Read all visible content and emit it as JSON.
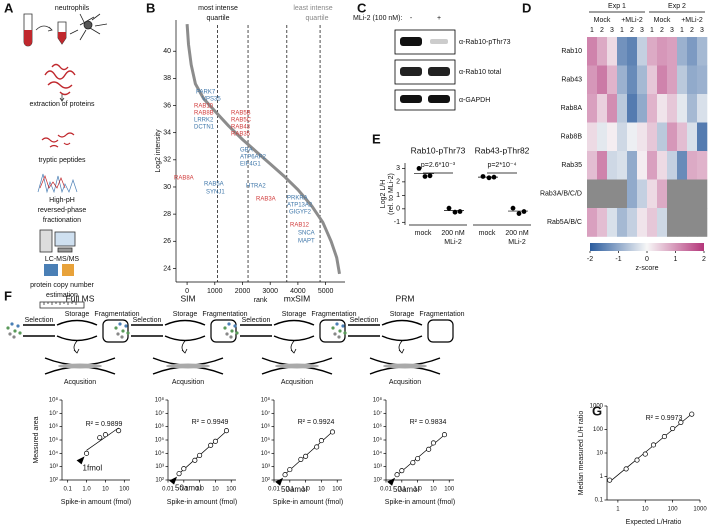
{
  "panels": [
    "A",
    "B",
    "C",
    "D",
    "E",
    "F",
    "G"
  ],
  "workflow": {
    "source": "neutrophils",
    "steps": [
      "extraction of proteins",
      "tryptic peptides",
      "High-pH",
      "reversed-phase",
      "fractionation",
      "LC-MS/MS",
      "protein copy number",
      "estimation"
    ]
  },
  "blot": {
    "treatment": "MLi-2 (100 nM):",
    "lanes": [
      "-",
      "+"
    ],
    "antibodies": [
      "α-Rab10-pThr73",
      "α-Rab10 total",
      "α-GAPDH"
    ]
  },
  "schematic": {
    "selection": "Selection",
    "storage": "Storage",
    "fragmentation": "Fragmentation",
    "acquisition": "Acqusition"
  },
  "chart_data": [
    {
      "type": "line",
      "xlabel": "rank",
      "ylabel": "Log2 intensity",
      "header_left": [
        "most intense",
        "quartile"
      ],
      "header_right": [
        "least intense",
        "quartile"
      ],
      "x": [
        0,
        50,
        150,
        300,
        600,
        1000,
        1500,
        2000,
        2500,
        3000,
        3500,
        4000,
        4500,
        4900,
        5200,
        5400,
        5500
      ],
      "values": [
        42,
        40.5,
        39,
        37.6,
        36.5,
        35.6,
        34.5,
        33.5,
        32.6,
        31.7,
        30.8,
        29.8,
        28.6,
        27.4,
        26,
        24.8,
        23.6
      ],
      "color": "#8c8c8c",
      "xlim": [
        -400,
        5700
      ],
      "ylim": [
        23,
        42.3
      ],
      "xticks": [
        0,
        1000,
        2000,
        3000,
        4000,
        5000
      ],
      "yticks": [
        24,
        26,
        28,
        30,
        32,
        34,
        36,
        38,
        40
      ],
      "quartile_lines": [
        1100,
        2200,
        3600,
        4800
      ],
      "annotations": [
        {
          "text": "PARK7",
          "color": "#3f77aa"
        },
        {
          "text": "VPS35",
          "color": "#3f77aa"
        },
        {
          "text": "RAB10",
          "color": "#d13a3a"
        },
        {
          "text": "RAB8B",
          "color": "#d13a3a"
        },
        {
          "text": "LRRK2",
          "color": "#3f77aa"
        },
        {
          "text": "DCTN1",
          "color": "#3f77aa"
        },
        {
          "text": "RAB5B",
          "color": "#d13a3a"
        },
        {
          "text": "RAB5C",
          "color": "#d13a3a"
        },
        {
          "text": "RAB43",
          "color": "#d13a3a"
        },
        {
          "text": "RAB35",
          "color": "#d13a3a"
        },
        {
          "text": "GBA",
          "color": "#3f77aa"
        },
        {
          "text": "ATP6AP2",
          "color": "#3f77aa"
        },
        {
          "text": "EIF4G1",
          "color": "#3f77aa"
        },
        {
          "text": "RAB8A",
          "color": "#d13a3a"
        },
        {
          "text": "RAB5A",
          "color": "#3f77aa"
        },
        {
          "text": "SYNJ1",
          "color": "#3f77aa"
        },
        {
          "text": "HTRA2",
          "color": "#3f77aa"
        },
        {
          "text": "RAB3A",
          "color": "#d13a3a"
        },
        {
          "text": "PRKRA",
          "color": "#3f77aa"
        },
        {
          "text": "ATP13A2",
          "color": "#3f77aa"
        },
        {
          "text": "GIGYF2",
          "color": "#3f77aa"
        },
        {
          "text": "RAB12",
          "color": "#d13a3a"
        },
        {
          "text": "SNCA",
          "color": "#3f77aa"
        },
        {
          "text": "MAPT",
          "color": "#3f77aa"
        }
      ]
    },
    {
      "type": "heatmap",
      "groups": [
        "Exp 1",
        "Exp 2"
      ],
      "conditions": [
        "Mock",
        "+MLi-2",
        "Mock",
        "+MLi-2"
      ],
      "columns": [
        1,
        2,
        3,
        1,
        2,
        3,
        1,
        2,
        3,
        1,
        2,
        3
      ],
      "rows": [
        "Rab10",
        "Rab43",
        "Rab8A",
        "Rab8B",
        "Rab35",
        "Rab3A/B/C/D",
        "Rab5A/B/C"
      ],
      "values": [
        [
          1.2,
          0.8,
          0.3,
          -1.3,
          -1.5,
          -0.5,
          0.8,
          1.0,
          0.9,
          -0.9,
          -1.2,
          -0.8
        ],
        [
          1.0,
          1.3,
          0.7,
          -0.9,
          -1.4,
          -0.8,
          0.5,
          1.2,
          0.9,
          -0.6,
          -1.0,
          -0.9
        ],
        [
          0.9,
          0.4,
          1.1,
          -0.6,
          -1.6,
          -1.0,
          0.7,
          0.2,
          0.5,
          -0.2,
          -0.8,
          -0.3
        ],
        [
          0.3,
          -0.2,
          0.1,
          -0.4,
          -0.1,
          0.2,
          0.5,
          -0.6,
          1.0,
          0.6,
          -0.3,
          -1.6
        ],
        [
          0.6,
          1.2,
          -0.4,
          -0.3,
          -1.0,
          0.1,
          0.9,
          0.3,
          -0.5,
          -1.4,
          0.8,
          0.7
        ],
        [
          null,
          null,
          null,
          null,
          -1.0,
          -0.5,
          0.3,
          0.8,
          null,
          null,
          null,
          null
        ],
        [
          0.9,
          0.6,
          -0.3,
          -0.8,
          -0.5,
          0.2,
          0.5,
          -0.4,
          null,
          null,
          null,
          null
        ]
      ],
      "colors": [
        "#2b5c9e",
        "#f7f7f7",
        "#b4367a"
      ],
      "missing_color": "#8a8a8a",
      "colorbar": {
        "label": "z-score",
        "lim": [
          -2,
          2
        ],
        "ticks": [
          -2,
          -1,
          0,
          1,
          2
        ]
      }
    },
    {
      "type": "dot",
      "ylabel": [
        "Log2 L/H",
        "(rel. to MLi-2)"
      ],
      "ylim": [
        -1.2,
        3.4
      ],
      "yticks": [
        -1,
        0,
        1,
        2,
        3
      ],
      "color": "#000000",
      "categories": [
        [
          "mock"
        ],
        [
          "200 nM",
          "MLi-2"
        ]
      ],
      "subplots": [
        {
          "title": "Rab10-pThr73",
          "pvalue": "p=2.6*10⁻³",
          "values": [
            [
              3.0,
              2.4,
              2.45
            ],
            [
              0.05,
              -0.25,
              -0.2
            ]
          ]
        },
        {
          "title": "Rab43-pThr82",
          "pvalue": "p=2*10⁻⁴",
          "values": [
            [
              2.4,
              2.3,
              2.35
            ],
            [
              0.05,
              -0.35,
              -0.2
            ]
          ]
        }
      ]
    },
    {
      "type": "scatter",
      "title": "Full MS",
      "r2": "R² = 0.9899",
      "lod": "1fmol",
      "x": [
        1,
        5,
        10,
        50
      ],
      "values": [
        10000,
        150000,
        250000,
        500000
      ],
      "xlim": [
        0.05,
        200
      ],
      "ylim": [
        100,
        100000000
      ],
      "log": true,
      "xticks": [
        0.1,
        {
          "value": 1,
          "label": "1.0"
        },
        10,
        100
      ],
      "yticks": [
        {
          "value": 100,
          "label": "10²"
        },
        {
          "value": 1000,
          "label": "10³"
        },
        {
          "value": 10000,
          "label": "10⁴"
        },
        {
          "value": 100000,
          "label": "10⁵"
        },
        {
          "value": 1000000,
          "label": "10⁶"
        },
        {
          "value": 10000000,
          "label": "10⁷"
        },
        {
          "value": 100000000,
          "label": "10⁸"
        }
      ],
      "xlabel": "Spike-in amount (fmol)",
      "ylabel": "Measured area"
    },
    {
      "type": "scatter",
      "title": "SIM",
      "r2": "R² = 0.9949",
      "lod": "50amol",
      "x": [
        0.05,
        0.1,
        0.5,
        1,
        5,
        10,
        50
      ],
      "values": [
        300,
        700,
        3000,
        7000,
        40000,
        80000,
        500000
      ],
      "xlim": [
        0.01,
        200
      ],
      "ylim": [
        100,
        100000000
      ],
      "log": true,
      "xticks": [
        0.01,
        0.1,
        {
          "value": 1,
          "label": "1.0"
        },
        10,
        100
      ],
      "yticks": [
        {
          "value": 100,
          "label": "10²"
        },
        {
          "value": 1000,
          "label": "10³"
        },
        {
          "value": 10000,
          "label": "10⁴"
        },
        {
          "value": 100000,
          "label": "10⁵"
        },
        {
          "value": 1000000,
          "label": "10⁶"
        },
        {
          "value": 10000000,
          "label": "10⁷"
        },
        {
          "value": 100000000,
          "label": "10⁸"
        }
      ],
      "xlabel": "Spike-in amount (fmol)"
    },
    {
      "type": "scatter",
      "title": "mxSIM",
      "r2": "R² = 0.9924",
      "lod": "50amol",
      "x": [
        0.05,
        0.1,
        0.5,
        1,
        5,
        10,
        50
      ],
      "values": [
        250,
        600,
        3500,
        6000,
        30000,
        90000,
        400000
      ],
      "xlim": [
        0.01,
        200
      ],
      "ylim": [
        100,
        100000000
      ],
      "log": true,
      "xticks": [
        0.01,
        0.1,
        {
          "value": 1,
          "label": "1.0"
        },
        10,
        100
      ],
      "yticks": [
        {
          "value": 100,
          "label": "10²"
        },
        {
          "value": 1000,
          "label": "10³"
        },
        {
          "value": 10000,
          "label": "10⁴"
        },
        {
          "value": 100000,
          "label": "10⁵"
        },
        {
          "value": 1000000,
          "label": "10⁶"
        },
        {
          "value": 10000000,
          "label": "10⁷"
        },
        {
          "value": 100000000,
          "label": "10⁸"
        }
      ],
      "xlabel": "Spike-in amount (fmol)"
    },
    {
      "type": "scatter",
      "title": "PRM",
      "r2": "R² = 0.9834",
      "lod": "50amol",
      "x": [
        0.05,
        0.1,
        0.5,
        1,
        5,
        10,
        50
      ],
      "values": [
        250,
        500,
        2000,
        4000,
        20000,
        60000,
        250000
      ],
      "xlim": [
        0.01,
        200
      ],
      "ylim": [
        100,
        100000000
      ],
      "log": true,
      "xticks": [
        0.01,
        0.1,
        {
          "value": 1,
          "label": "1.0"
        },
        10,
        100
      ],
      "yticks": [
        {
          "value": 100,
          "label": "10²"
        },
        {
          "value": 1000,
          "label": "10³"
        },
        {
          "value": 10000,
          "label": "10⁴"
        },
        {
          "value": 100000,
          "label": "10⁵"
        },
        {
          "value": 1000000,
          "label": "10⁶"
        },
        {
          "value": 10000000,
          "label": "10⁷"
        },
        {
          "value": 100000000,
          "label": "10⁸"
        }
      ],
      "xlabel": "Spike-in amount (fmol)"
    },
    {
      "type": "scatter",
      "r2": "R² = 0.9973",
      "x": [
        0.5,
        2,
        5,
        10,
        20,
        50,
        100,
        200,
        500
      ],
      "values": [
        0.7,
        2.1,
        5,
        9,
        22,
        50,
        110,
        200,
        450
      ],
      "xlim": [
        0.4,
        1000
      ],
      "ylim": [
        0.1,
        1000
      ],
      "log": true,
      "xticks": [
        1,
        10,
        100,
        1000
      ],
      "yticks": [
        0.1,
        1,
        10,
        100,
        1000
      ],
      "xlabel": "Expected L/Hratio",
      "ylabel": "Median measured L/H ratio"
    }
  ]
}
